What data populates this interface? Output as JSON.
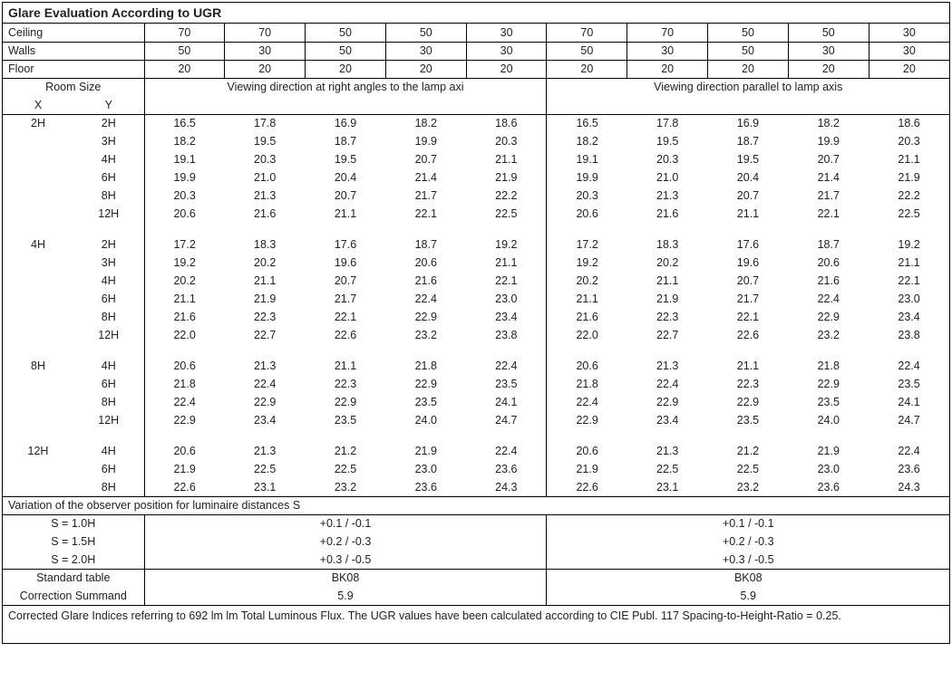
{
  "title": "Glare Evaluation According to UGR",
  "reflectances": {
    "rows": [
      {
        "label": "Ceiling",
        "vals": [
          "70",
          "70",
          "50",
          "50",
          "30",
          "70",
          "70",
          "50",
          "50",
          "30"
        ]
      },
      {
        "label": "Walls",
        "vals": [
          "50",
          "30",
          "50",
          "30",
          "30",
          "50",
          "30",
          "50",
          "30",
          "30"
        ]
      },
      {
        "label": "Floor",
        "vals": [
          "20",
          "20",
          "20",
          "20",
          "20",
          "20",
          "20",
          "20",
          "20",
          "20"
        ]
      }
    ]
  },
  "room_header": {
    "title": "Room Size",
    "x": "X",
    "y": "Y"
  },
  "dir_left": "Viewing direction at right angles to the lamp axi",
  "dir_right": "Viewing direction parallel to lamp axis",
  "groups": [
    {
      "x": "2H",
      "rows": [
        {
          "y": "2H",
          "l": [
            "16.5",
            "17.8",
            "16.9",
            "18.2",
            "18.6"
          ],
          "r": [
            "16.5",
            "17.8",
            "16.9",
            "18.2",
            "18.6"
          ]
        },
        {
          "y": "3H",
          "l": [
            "18.2",
            "19.5",
            "18.7",
            "19.9",
            "20.3"
          ],
          "r": [
            "18.2",
            "19.5",
            "18.7",
            "19.9",
            "20.3"
          ]
        },
        {
          "y": "4H",
          "l": [
            "19.1",
            "20.3",
            "19.5",
            "20.7",
            "21.1"
          ],
          "r": [
            "19.1",
            "20.3",
            "19.5",
            "20.7",
            "21.1"
          ]
        },
        {
          "y": "6H",
          "l": [
            "19.9",
            "21.0",
            "20.4",
            "21.4",
            "21.9"
          ],
          "r": [
            "19.9",
            "21.0",
            "20.4",
            "21.4",
            "21.9"
          ]
        },
        {
          "y": "8H",
          "l": [
            "20.3",
            "21.3",
            "20.7",
            "21.7",
            "22.2"
          ],
          "r": [
            "20.3",
            "21.3",
            "20.7",
            "21.7",
            "22.2"
          ]
        },
        {
          "y": "12H",
          "l": [
            "20.6",
            "21.6",
            "21.1",
            "22.1",
            "22.5"
          ],
          "r": [
            "20.6",
            "21.6",
            "21.1",
            "22.1",
            "22.5"
          ]
        }
      ]
    },
    {
      "x": "4H",
      "rows": [
        {
          "y": "2H",
          "l": [
            "17.2",
            "18.3",
            "17.6",
            "18.7",
            "19.2"
          ],
          "r": [
            "17.2",
            "18.3",
            "17.6",
            "18.7",
            "19.2"
          ]
        },
        {
          "y": "3H",
          "l": [
            "19.2",
            "20.2",
            "19.6",
            "20.6",
            "21.1"
          ],
          "r": [
            "19.2",
            "20.2",
            "19.6",
            "20.6",
            "21.1"
          ]
        },
        {
          "y": "4H",
          "l": [
            "20.2",
            "21.1",
            "20.7",
            "21.6",
            "22.1"
          ],
          "r": [
            "20.2",
            "21.1",
            "20.7",
            "21.6",
            "22.1"
          ]
        },
        {
          "y": "6H",
          "l": [
            "21.1",
            "21.9",
            "21.7",
            "22.4",
            "23.0"
          ],
          "r": [
            "21.1",
            "21.9",
            "21.7",
            "22.4",
            "23.0"
          ]
        },
        {
          "y": "8H",
          "l": [
            "21.6",
            "22.3",
            "22.1",
            "22.9",
            "23.4"
          ],
          "r": [
            "21.6",
            "22.3",
            "22.1",
            "22.9",
            "23.4"
          ]
        },
        {
          "y": "12H",
          "l": [
            "22.0",
            "22.7",
            "22.6",
            "23.2",
            "23.8"
          ],
          "r": [
            "22.0",
            "22.7",
            "22.6",
            "23.2",
            "23.8"
          ]
        }
      ]
    },
    {
      "x": "8H",
      "rows": [
        {
          "y": "4H",
          "l": [
            "20.6",
            "21.3",
            "21.1",
            "21.8",
            "22.4"
          ],
          "r": [
            "20.6",
            "21.3",
            "21.1",
            "21.8",
            "22.4"
          ]
        },
        {
          "y": "6H",
          "l": [
            "21.8",
            "22.4",
            "22.3",
            "22.9",
            "23.5"
          ],
          "r": [
            "21.8",
            "22.4",
            "22.3",
            "22.9",
            "23.5"
          ]
        },
        {
          "y": "8H",
          "l": [
            "22.4",
            "22.9",
            "22.9",
            "23.5",
            "24.1"
          ],
          "r": [
            "22.4",
            "22.9",
            "22.9",
            "23.5",
            "24.1"
          ]
        },
        {
          "y": "12H",
          "l": [
            "22.9",
            "23.4",
            "23.5",
            "24.0",
            "24.7"
          ],
          "r": [
            "22.9",
            "23.4",
            "23.5",
            "24.0",
            "24.7"
          ]
        }
      ]
    },
    {
      "x": "12H",
      "rows": [
        {
          "y": "4H",
          "l": [
            "20.6",
            "21.3",
            "21.2",
            "21.9",
            "22.4"
          ],
          "r": [
            "20.6",
            "21.3",
            "21.2",
            "21.9",
            "22.4"
          ]
        },
        {
          "y": "6H",
          "l": [
            "21.9",
            "22.5",
            "22.5",
            "23.0",
            "23.6"
          ],
          "r": [
            "21.9",
            "22.5",
            "22.5",
            "23.0",
            "23.6"
          ]
        },
        {
          "y": "8H",
          "l": [
            "22.6",
            "23.1",
            "23.2",
            "23.6",
            "24.3"
          ],
          "r": [
            "22.6",
            "23.1",
            "23.2",
            "23.6",
            "24.3"
          ]
        }
      ]
    }
  ],
  "variation": {
    "title": "Variation of the observer position for luminaire distances S",
    "rows": [
      {
        "label": "S = 1.0H",
        "l": "+0.1 / -0.1",
        "r": "+0.1 / -0.1"
      },
      {
        "label": "S = 1.5H",
        "l": "+0.2 / -0.3",
        "r": "+0.2 / -0.3"
      },
      {
        "label": "S = 2.0H",
        "l": "+0.3 / -0.5",
        "r": "+0.3 / -0.5"
      }
    ]
  },
  "standard": {
    "rows": [
      {
        "label": "Standard table",
        "l": "BK08",
        "r": "BK08"
      },
      {
        "label": "Correction Summand",
        "l": "5.9",
        "r": "5.9"
      }
    ]
  },
  "footnote": "Corrected Glare Indices referring to 692 lm lm Total Luminous Flux. The UGR values have been calculated according to CIE Publ. 117    Spacing-to-Height-Ratio = 0.25."
}
